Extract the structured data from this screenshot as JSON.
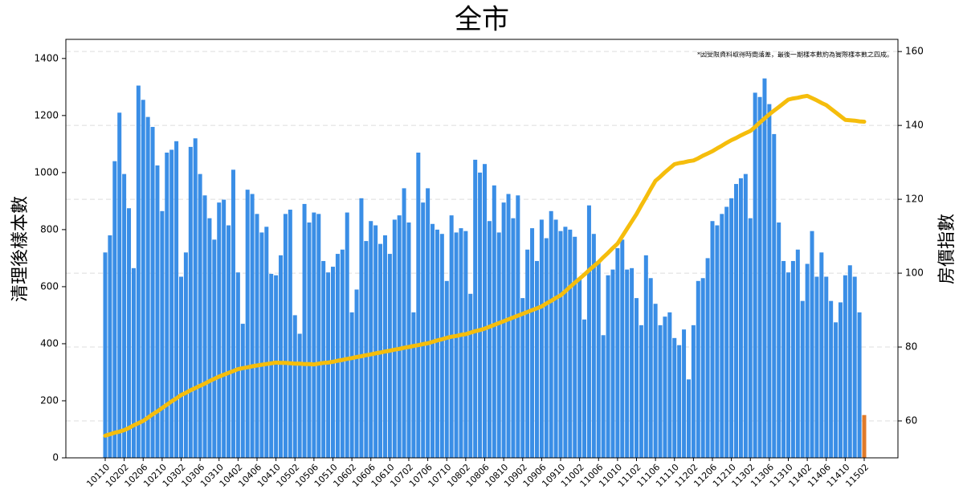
{
  "chart_data": {
    "type": "bar_line",
    "title": "全市",
    "annotation": "*因受限資料取得時間落差，最後一期樣本數約為實際樣本數之四成。",
    "y_label": "清理後樣本數",
    "y2_label": "房價指數",
    "categories": [
      "10110",
      null,
      null,
      null,
      "10202",
      null,
      null,
      null,
      "10206",
      null,
      null,
      null,
      "10210",
      null,
      null,
      null,
      "10302",
      null,
      null,
      null,
      "10306",
      null,
      null,
      null,
      "10310",
      null,
      null,
      null,
      "10402",
      null,
      null,
      null,
      "10406",
      null,
      null,
      null,
      "10410",
      null,
      null,
      null,
      "10502",
      null,
      null,
      null,
      "10506",
      null,
      null,
      null,
      "10510",
      null,
      null,
      null,
      "10602",
      null,
      null,
      null,
      "10606",
      null,
      null,
      null,
      "10610",
      null,
      null,
      null,
      "10702",
      null,
      null,
      null,
      "10706",
      null,
      null,
      null,
      "10710",
      null,
      null,
      null,
      "10802",
      null,
      null,
      null,
      "10806",
      null,
      null,
      null,
      "10810",
      null,
      null,
      null,
      "10902",
      null,
      null,
      null,
      "10906",
      null,
      null,
      null,
      "10910",
      null,
      null,
      null,
      "11002",
      null,
      null,
      null,
      "11006",
      null,
      null,
      null,
      "11010",
      null,
      null,
      null,
      "11102",
      null,
      null,
      null,
      "11106",
      null,
      null,
      null,
      "11110",
      null,
      null,
      null,
      "11202",
      null,
      null,
      null,
      "11206",
      null,
      null,
      null,
      "11210",
      null,
      null,
      null,
      "11302",
      null,
      null,
      null,
      "11306",
      null,
      null,
      null,
      "11310",
      null,
      null,
      null,
      "11402",
      null,
      null,
      null,
      "11406",
      null,
      null,
      null,
      "11410",
      null,
      null,
      null,
      "11502"
    ],
    "bars": {
      "color": "#3a8ee6",
      "last_color": "#e07b2a",
      "values": [
        720,
        780,
        1040,
        1210,
        995,
        875,
        665,
        1305,
        1255,
        1195,
        1160,
        1025,
        865,
        1070,
        1080,
        1110,
        635,
        720,
        1090,
        1120,
        995,
        920,
        840,
        765,
        895,
        905,
        815,
        1010,
        650,
        470,
        940,
        925,
        855,
        790,
        810,
        645,
        640,
        710,
        855,
        870,
        500,
        435,
        890,
        825,
        860,
        855,
        690,
        650,
        670,
        715,
        730,
        860,
        510,
        590,
        910,
        760,
        830,
        815,
        750,
        780,
        715,
        835,
        850,
        945,
        825,
        510,
        1070,
        895,
        945,
        820,
        800,
        785,
        620,
        850,
        790,
        805,
        795,
        575,
        1045,
        1000,
        1030,
        830,
        955,
        790,
        895,
        925,
        840,
        920,
        560,
        730,
        805,
        690,
        835,
        770,
        865,
        835,
        795,
        810,
        800,
        775,
        625,
        485,
        885,
        785,
        690,
        430,
        640,
        660,
        735,
        765,
        660,
        665,
        560,
        465,
        710,
        630,
        540,
        465,
        495,
        510,
        420,
        395,
        450,
        275,
        465,
        620,
        630,
        700,
        830,
        815,
        855,
        880,
        910,
        960,
        980,
        995,
        840,
        1280,
        1265,
        1330,
        1240,
        1135,
        825,
        690,
        650,
        690,
        730,
        550,
        680,
        795,
        635,
        720,
        635,
        550,
        475,
        545,
        640,
        675,
        635,
        510,
        150
      ]
    },
    "line": {
      "color": "#f5bd0c",
      "axis": "y2",
      "values": [
        56,
        56.4,
        56.8,
        57.1,
        57.5,
        58.1,
        58.8,
        59.4,
        60,
        60.9,
        61.8,
        62.6,
        63.5,
        64.4,
        65.3,
        66.1,
        67,
        67.6,
        68.3,
        68.9,
        69.5,
        70.1,
        70.8,
        71.4,
        72,
        72.5,
        73,
        73.5,
        74,
        74.3,
        74.5,
        74.8,
        75,
        75.2,
        75.4,
        75.6,
        75.8,
        75.7,
        75.7,
        75.6,
        75.5,
        75.5,
        75.4,
        75.4,
        75.3,
        75.5,
        75.7,
        75.8,
        76,
        76.3,
        76.5,
        76.8,
        77,
        77.3,
        77.5,
        77.8,
        78,
        78.3,
        78.5,
        78.8,
        79,
        79.3,
        79.5,
        79.8,
        80,
        80.3,
        80.5,
        80.8,
        81,
        81.4,
        81.8,
        82.1,
        82.5,
        82.8,
        83,
        83.3,
        83.5,
        83.9,
        84.3,
        84.6,
        85,
        85.5,
        86,
        86.5,
        87,
        87.5,
        88,
        88.5,
        89,
        89.5,
        90,
        90.5,
        91,
        91.8,
        92.5,
        93.3,
        94,
        95.1,
        96.3,
        97.4,
        98.5,
        99.6,
        100.8,
        101.9,
        103,
        104.3,
        105.5,
        106.8,
        108,
        110,
        112,
        114,
        116,
        118.3,
        120.5,
        122.8,
        125,
        126.1,
        127.3,
        128.4,
        129.5,
        129.8,
        130,
        130.3,
        130.5,
        131.1,
        131.8,
        132.4,
        133,
        133.8,
        134.5,
        135.3,
        136,
        136.6,
        137.3,
        137.9,
        138.5,
        139.6,
        140.8,
        141.9,
        143,
        144,
        145,
        146,
        147,
        147.3,
        147.5,
        147.8,
        148,
        147.4,
        146.8,
        146.1,
        145.5,
        144.5,
        143.5,
        142.5,
        141.5,
        141.4,
        141.3,
        141.1,
        141
      ]
    },
    "ylim": [
      0,
      1467
    ],
    "yticks": [
      0,
      200,
      400,
      600,
      800,
      1000,
      1200,
      1400
    ],
    "y2lim": [
      50,
      163.3
    ],
    "y2ticks": [
      60,
      80,
      100,
      120,
      140,
      160
    ],
    "grid": true
  }
}
